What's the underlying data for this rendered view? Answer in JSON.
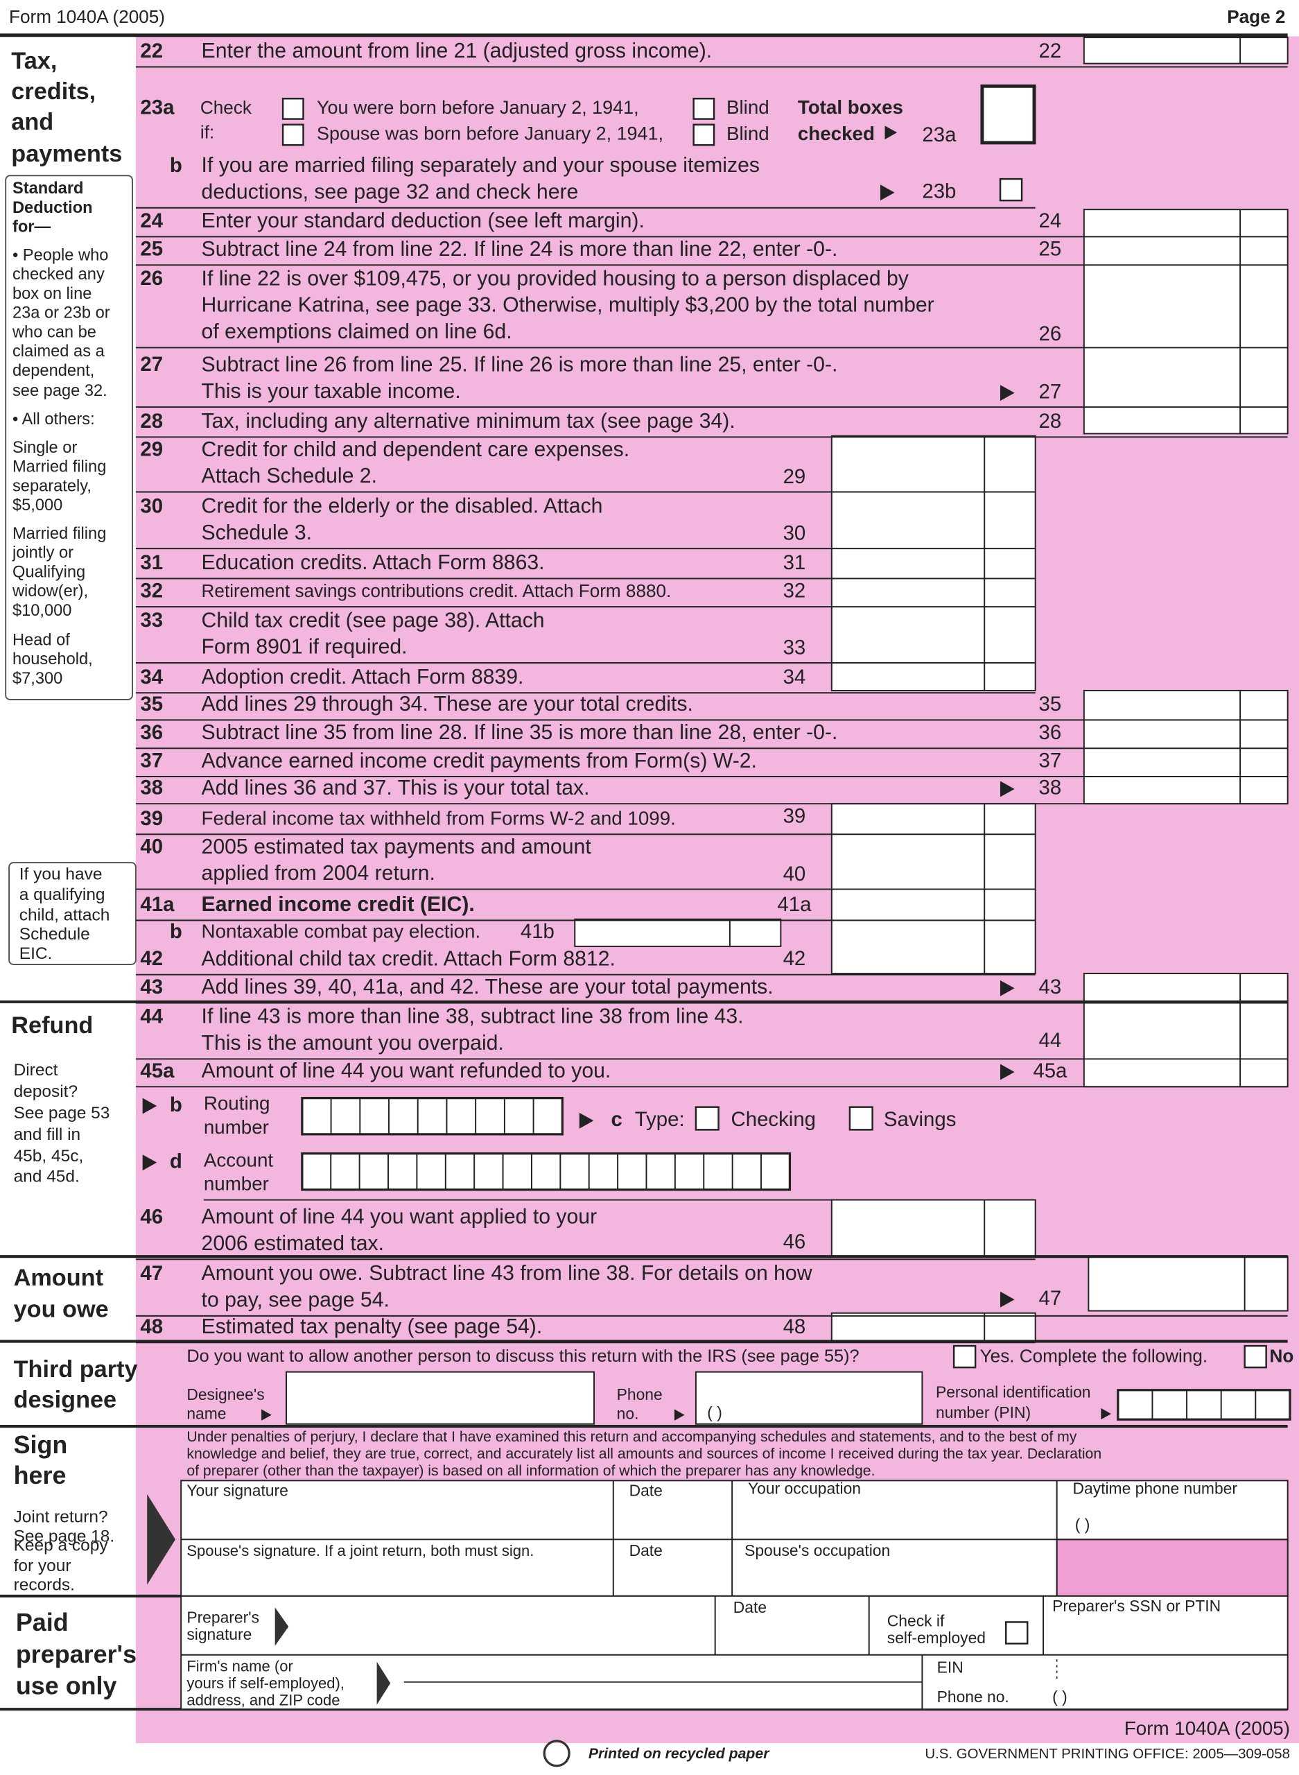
{
  "header": {
    "form": "Form 1040A (2005)",
    "page": "Page 2"
  },
  "sidebar": {
    "tax_credits": [
      "Tax,",
      "credits,",
      "and",
      "payments"
    ],
    "standard_deduction": [
      "Standard",
      "Deduction",
      "for—",
      "• People who",
      "checked any",
      "box on line",
      "23a or 23b or",
      "who can be",
      "claimed as a",
      "dependent,",
      "see page 32.",
      "• All others:",
      "Single or",
      "Married filing",
      "separately,",
      "$5,000",
      "Married filing",
      "jointly or",
      "Qualifying",
      "widow(er),",
      "$10,000",
      "Head of",
      "household,",
      "$7,300"
    ],
    "eic_note": [
      "If you have",
      "a qualifying",
      "child, attach",
      "Schedule",
      "EIC."
    ],
    "refund": "Refund",
    "direct_deposit": [
      "Direct",
      "deposit?",
      "See page 53",
      "and fill in",
      "45b, 45c,",
      "and 45d."
    ],
    "amount_owe": [
      "Amount",
      "you owe"
    ],
    "third_party": [
      "Third party",
      "designee"
    ],
    "sign_here": [
      "Sign",
      "here"
    ],
    "joint_return": [
      "Joint return?",
      "See page 18."
    ],
    "keep_copy": [
      "Keep a copy",
      "for your",
      "records."
    ],
    "paid_preparer": [
      "Paid",
      "preparer's",
      "use only"
    ]
  },
  "line_23a": {
    "num": "23a",
    "check": [
      "Check",
      "if:"
    ],
    "you": "You were born before January 2, 1941,",
    "spouse": "Spouse was born before January 2, 1941,",
    "blind": [
      "Blind",
      "Blind"
    ],
    "total": [
      "Total boxes",
      "checked"
    ],
    "ref": "23a"
  },
  "lines": [
    {
      "num": "22",
      "text": [
        "Enter the amount from line 21 (adjusted gross income)."
      ],
      "ref": "22"
    },
    {
      "num": "b",
      "text": [
        "If you are married filing separately and your spouse itemizes",
        "deductions, see page 32 and check here"
      ],
      "ref": "23b"
    },
    {
      "num": "24",
      "text": [
        "Enter your standard deduction (see left margin)."
      ],
      "ref": "24"
    },
    {
      "num": "25",
      "text": [
        "Subtract line 24 from line 22. If line 24 is more than line 22, enter -0-."
      ],
      "ref": "25"
    },
    {
      "num": "26",
      "text": [
        "If line 22 is over $109,475, or you provided housing to a person displaced by",
        "Hurricane Katrina, see page 33. Otherwise, multiply $3,200 by the total number",
        "of exemptions claimed on line 6d."
      ],
      "ref": "26"
    },
    {
      "num": "27",
      "text": [
        "Subtract line 26 from line 25. If line 26 is more than line 25, enter -0-.",
        "This is your taxable income."
      ],
      "ref": "27"
    },
    {
      "num": "28",
      "text": [
        "Tax, including any alternative minimum tax (see page 34)."
      ],
      "ref": "28"
    },
    {
      "num": "29",
      "text": [
        "Credit for child and dependent care expenses.",
        "Attach Schedule 2."
      ],
      "ref": "29"
    },
    {
      "num": "30",
      "text": [
        "Credit for the elderly or the disabled. Attach",
        "Schedule 3."
      ],
      "ref": "30"
    },
    {
      "num": "31",
      "text": [
        "Education credits. Attach Form 8863."
      ],
      "ref": "31"
    },
    {
      "num": "32",
      "text": [
        "Retirement savings contributions credit. Attach Form 8880."
      ],
      "ref": "32"
    },
    {
      "num": "33",
      "text": [
        "Child tax credit (see page 38). Attach",
        "Form 8901 if required."
      ],
      "ref": "33"
    },
    {
      "num": "34",
      "text": [
        "Adoption credit. Attach Form 8839."
      ],
      "ref": "34"
    },
    {
      "num": "35",
      "text": [
        "Add lines 29 through 34. These are your total credits."
      ],
      "ref": "35"
    },
    {
      "num": "36",
      "text": [
        "Subtract line 35 from line 28. If line 35 is more than line 28, enter -0-."
      ],
      "ref": "36"
    },
    {
      "num": "37",
      "text": [
        "Advance earned income credit payments from Form(s) W-2."
      ],
      "ref": "37"
    },
    {
      "num": "38",
      "text": [
        "Add lines 36 and 37. This is your total tax."
      ],
      "ref": "38"
    },
    {
      "num": "39",
      "text": [
        "Federal income tax withheld from Forms W-2 and 1099."
      ],
      "ref": "39"
    },
    {
      "num": "40",
      "text": [
        "2005 estimated tax payments and amount",
        "applied from 2004 return."
      ],
      "ref": "40"
    },
    {
      "num": "41a",
      "text": [
        "Earned income credit (EIC)."
      ],
      "ref": "41a"
    },
    {
      "num": "b",
      "text": [
        "Nontaxable combat pay election."
      ],
      "ref": "41b"
    },
    {
      "num": "42",
      "text": [
        "Additional child tax credit. Attach Form 8812."
      ],
      "ref": "42"
    },
    {
      "num": "43",
      "text": [
        "Add lines 39, 40, 41a, and 42. These are your total payments."
      ],
      "ref": "43"
    },
    {
      "num": "44",
      "text": [
        "If line 43 is more than line 38, subtract line 38 from line 43.",
        "This is the amount you overpaid."
      ],
      "ref": "44"
    },
    {
      "num": "45a",
      "text": [
        "Amount of line 44 you want refunded to you."
      ],
      "ref": "45a"
    },
    {
      "num": "46",
      "text": [
        "Amount of line 44 you want applied to your",
        "2006 estimated tax."
      ],
      "ref": "46"
    },
    {
      "num": "47",
      "text": [
        "Amount you owe. Subtract line 43 from line 38. For details on how",
        "to pay, see page 54."
      ],
      "ref": "47"
    },
    {
      "num": "48",
      "text": [
        "Estimated tax penalty (see page 54)."
      ],
      "ref": "48"
    }
  ],
  "line_45": {
    "b": "b",
    "routing": [
      "Routing",
      "number"
    ],
    "c": "c",
    "type": "Type:",
    "checking": "Checking",
    "savings": "Savings",
    "d": "d",
    "account": [
      "Account",
      "number"
    ]
  },
  "third_party": {
    "question": "Do you want to allow another person to discuss this return with the IRS (see page 55)?",
    "yes": "Yes. Complete the following.",
    "no": "No",
    "designee": [
      "Designee's",
      "name"
    ],
    "phone": [
      "Phone",
      "no."
    ],
    "paren": "(        )",
    "pin": [
      "Personal identification",
      "number (PIN)"
    ]
  },
  "sign": {
    "perjury": [
      "Under penalties of perjury, I declare that I have examined this return and accompanying schedules and statements, and to the best of my",
      "knowledge and belief, they are true, correct, and accurately list all amounts and sources of income I received during the tax year. Declaration",
      "of preparer (other than the taxpayer) is based on all information of which the preparer has any knowledge."
    ],
    "your_signature": "Your signature",
    "date": "Date",
    "your_occupation": "Your occupation",
    "daytime_phone": "Daytime phone number",
    "paren": "(        )",
    "spouse_signature": "Spouse's signature. If a joint return, both must sign.",
    "date2": "Date",
    "spouse_occupation": "Spouse's occupation"
  },
  "preparer": {
    "signature": [
      "Preparer's",
      "signature"
    ],
    "date": "Date",
    "check": [
      "Check if",
      "self-employed"
    ],
    "ssn": "Preparer's SSN or PTIN",
    "firm": [
      "Firm's name (or",
      "yours if self-employed),",
      "address, and ZIP code"
    ],
    "ein": "EIN",
    "phone": "Phone no.",
    "paren": "(        )"
  },
  "footer": {
    "form": "Form 1040A (2005)",
    "recycled": "Printed on recycled paper",
    "gpo": "U.S. GOVERNMENT PRINTING OFFICE: 2005—309-058"
  }
}
